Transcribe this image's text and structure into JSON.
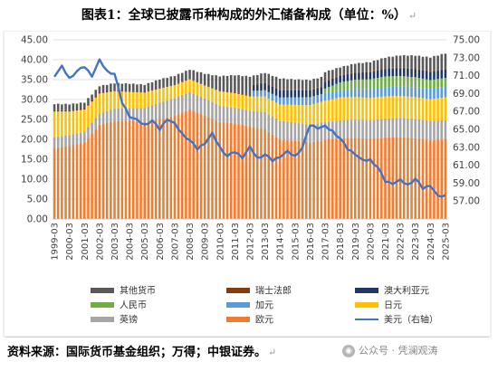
{
  "title": "图表1：全球已披露币种构成的外汇储备构成（单位：%）",
  "title_mark": "↵",
  "source": "资料来源：国际货币基金组织；万得；中银证券。",
  "source_mark": "↵",
  "watermark": {
    "text": "公众号 · 凭澜观涛",
    "icon": "wechat-icon"
  },
  "chart_data": {
    "type": "bar",
    "stacked": true,
    "grid": true,
    "legend_position": "bottom",
    "ylim": [
      0,
      45
    ],
    "yticks": [
      0,
      5,
      10,
      15,
      20,
      25,
      30,
      35,
      40,
      45
    ],
    "ytick_labels": [
      "0.00",
      "5.00",
      "10.00",
      "15.00",
      "20.00",
      "25.00",
      "30.00",
      "35.00",
      "40.00",
      "45.00"
    ],
    "y2lim": [
      55,
      75
    ],
    "y2ticks": [
      57,
      59,
      61,
      63,
      65,
      67,
      69,
      71,
      73,
      75
    ],
    "y2tick_labels": [
      "57.00",
      "59.00",
      "61.00",
      "63.00",
      "65.00",
      "67.00",
      "69.00",
      "71.00",
      "73.00",
      "75.00"
    ],
    "x_start": "1999-03",
    "x_tick_labels": [
      "1999-03",
      "2000-03",
      "2001-03",
      "2002-03",
      "2003-03",
      "2004-03",
      "2005-03",
      "2006-03",
      "2007-03",
      "2008-03",
      "2009-03",
      "2010-03",
      "2011-03",
      "2012-03",
      "2013-03",
      "2014-03",
      "2015-03",
      "2016-03",
      "2017-03",
      "2018-03",
      "2019-03",
      "2020-03",
      "2021-03",
      "2022-03",
      "2023-03",
      "2024-03",
      "2025-03"
    ],
    "colors": {
      "其他货币": "#595959",
      "瑞士法郎": "#843c0c",
      "澳大利亚元": "#1f3864",
      "人民币": "#70ad47",
      "加元": "#5b9bd5",
      "日元": "#ffc000",
      "英镑": "#a5a5a5",
      "欧元": "#ed7d31",
      "美元（右轴）": "#4472c4"
    },
    "legend": [
      "其他货币",
      "瑞士法郎",
      "澳大利亚元",
      "人民币",
      "加元",
      "日元",
      "英镑",
      "欧元",
      "美元（右轴）"
    ],
    "series_keyframes": [
      {
        "name": "欧元",
        "points": [
          [
            0,
            17.9
          ],
          [
            4,
            18.3
          ],
          [
            8,
            19.2
          ],
          [
            12,
            23.7
          ],
          [
            16,
            24.7
          ],
          [
            20,
            24.7
          ],
          [
            24,
            24.3
          ],
          [
            28,
            25.1
          ],
          [
            32,
            25.9
          ],
          [
            36,
            27.5
          ],
          [
            40,
            26.0
          ],
          [
            44,
            24.4
          ],
          [
            48,
            24.0
          ],
          [
            52,
            23.3
          ],
          [
            56,
            22.5
          ],
          [
            60,
            19.9
          ],
          [
            64,
            19.7
          ],
          [
            68,
            19.2
          ],
          [
            72,
            19.9
          ],
          [
            76,
            20.3
          ],
          [
            80,
            20.4
          ],
          [
            84,
            20.1
          ],
          [
            88,
            20.5
          ],
          [
            92,
            20.6
          ],
          [
            96,
            20.3
          ],
          [
            100,
            19.8
          ],
          [
            104,
            20.0
          ],
          [
            105,
            20.0
          ]
        ]
      },
      {
        "name": "英镑",
        "points": [
          [
            0,
            2.7
          ],
          [
            8,
            2.8
          ],
          [
            12,
            2.8
          ],
          [
            20,
            3.2
          ],
          [
            32,
            4.5
          ],
          [
            40,
            4.3
          ],
          [
            44,
            4.1
          ],
          [
            52,
            3.9
          ],
          [
            60,
            4.8
          ],
          [
            64,
            4.5
          ],
          [
            76,
            4.5
          ],
          [
            84,
            4.7
          ],
          [
            100,
            4.9
          ],
          [
            105,
            4.8
          ]
        ]
      },
      {
        "name": "日元",
        "points": [
          [
            0,
            6.4
          ],
          [
            8,
            5.5
          ],
          [
            12,
            5.0
          ],
          [
            16,
            4.4
          ],
          [
            20,
            4.0
          ],
          [
            28,
            3.6
          ],
          [
            32,
            3.2
          ],
          [
            40,
            3.2
          ],
          [
            44,
            3.6
          ],
          [
            52,
            3.6
          ],
          [
            56,
            3.9
          ],
          [
            60,
            4.0
          ],
          [
            68,
            4.9
          ],
          [
            76,
            5.7
          ],
          [
            84,
            5.6
          ],
          [
            92,
            5.5
          ],
          [
            100,
            5.4
          ],
          [
            105,
            5.8
          ]
        ]
      },
      {
        "name": "加元",
        "points": [
          [
            0,
            0.0
          ],
          [
            52,
            0.0
          ],
          [
            53,
            1.4
          ],
          [
            60,
            1.8
          ],
          [
            64,
            1.9
          ],
          [
            68,
            2.0
          ],
          [
            76,
            1.9
          ],
          [
            84,
            2.2
          ],
          [
            92,
            2.4
          ],
          [
            100,
            2.6
          ],
          [
            105,
            2.8
          ]
        ]
      },
      {
        "name": "人民币",
        "points": [
          [
            0,
            0.0
          ],
          [
            71,
            0.0
          ],
          [
            72,
            1.1
          ],
          [
            76,
            1.9
          ],
          [
            80,
            2.3
          ],
          [
            84,
            2.5
          ],
          [
            88,
            2.7
          ],
          [
            92,
            2.6
          ],
          [
            96,
            2.5
          ],
          [
            100,
            2.2
          ],
          [
            105,
            2.1
          ]
        ]
      },
      {
        "name": "澳大利亚元",
        "points": [
          [
            0,
            0.0
          ],
          [
            52,
            0.0
          ],
          [
            53,
            1.5
          ],
          [
            56,
            1.8
          ],
          [
            60,
            1.8
          ],
          [
            68,
            1.7
          ],
          [
            76,
            1.7
          ],
          [
            84,
            1.8
          ],
          [
            92,
            2.0
          ],
          [
            100,
            2.1
          ],
          [
            105,
            2.1
          ]
        ]
      },
      {
        "name": "瑞士法郎",
        "points": [
          [
            0,
            0.3
          ],
          [
            12,
            0.4
          ],
          [
            20,
            0.2
          ],
          [
            28,
            0.2
          ],
          [
            40,
            0.1
          ],
          [
            52,
            0.3
          ],
          [
            60,
            0.3
          ],
          [
            68,
            0.2
          ],
          [
            76,
            0.2
          ],
          [
            84,
            0.2
          ],
          [
            100,
            0.2
          ],
          [
            105,
            0.2
          ]
        ]
      },
      {
        "name": "其他货币",
        "points": [
          [
            0,
            1.6
          ],
          [
            8,
            1.4
          ],
          [
            12,
            1.5
          ],
          [
            20,
            1.9
          ],
          [
            24,
            1.8
          ],
          [
            28,
            2.1
          ],
          [
            36,
            2.3
          ],
          [
            40,
            2.9
          ],
          [
            44,
            3.6
          ],
          [
            48,
            4.3
          ],
          [
            52,
            4.7
          ],
          [
            53,
            2.0
          ],
          [
            60,
            2.7
          ],
          [
            64,
            2.5
          ],
          [
            68,
            2.4
          ],
          [
            72,
            2.3
          ],
          [
            76,
            1.9
          ],
          [
            84,
            2.3
          ],
          [
            92,
            3.0
          ],
          [
            100,
            3.4
          ],
          [
            105,
            4.0
          ]
        ]
      }
    ],
    "usd_right_axis": {
      "name": "美元（右轴）",
      "points": [
        [
          0,
          71.0
        ],
        [
          2,
          72.0
        ],
        [
          4,
          70.7
        ],
        [
          6,
          71.5
        ],
        [
          8,
          72.0
        ],
        [
          10,
          71.0
        ],
        [
          12,
          72.7
        ],
        [
          14,
          71.5
        ],
        [
          16,
          71.2
        ],
        [
          18,
          68.0
        ],
        [
          20,
          66.5
        ],
        [
          22,
          66.0
        ],
        [
          24,
          65.5
        ],
        [
          26,
          66.0
        ],
        [
          28,
          65.0
        ],
        [
          30,
          66.2
        ],
        [
          32,
          65.6
        ],
        [
          34,
          64.5
        ],
        [
          36,
          63.8
        ],
        [
          38,
          62.8
        ],
        [
          40,
          63.5
        ],
        [
          42,
          64.5
        ],
        [
          44,
          63.0
        ],
        [
          46,
          62.0
        ],
        [
          48,
          62.5
        ],
        [
          50,
          61.9
        ],
        [
          52,
          63.0
        ],
        [
          54,
          61.8
        ],
        [
          56,
          62.2
        ],
        [
          58,
          61.5
        ],
        [
          60,
          62.0
        ],
        [
          62,
          62.5
        ],
        [
          64,
          62.0
        ],
        [
          66,
          63.0
        ],
        [
          68,
          65.5
        ],
        [
          70,
          65.2
        ],
        [
          72,
          65.3
        ],
        [
          74,
          64.8
        ],
        [
          76,
          64.0
        ],
        [
          78,
          62.8
        ],
        [
          80,
          62.3
        ],
        [
          82,
          61.5
        ],
        [
          84,
          61.6
        ],
        [
          86,
          60.8
        ],
        [
          88,
          59.2
        ],
        [
          90,
          59.0
        ],
        [
          92,
          59.3
        ],
        [
          94,
          58.8
        ],
        [
          96,
          59.5
        ],
        [
          98,
          58.4
        ],
        [
          100,
          58.8
        ],
        [
          102,
          57.5
        ],
        [
          104,
          57.6
        ],
        [
          105,
          57.9
        ]
      ]
    }
  }
}
